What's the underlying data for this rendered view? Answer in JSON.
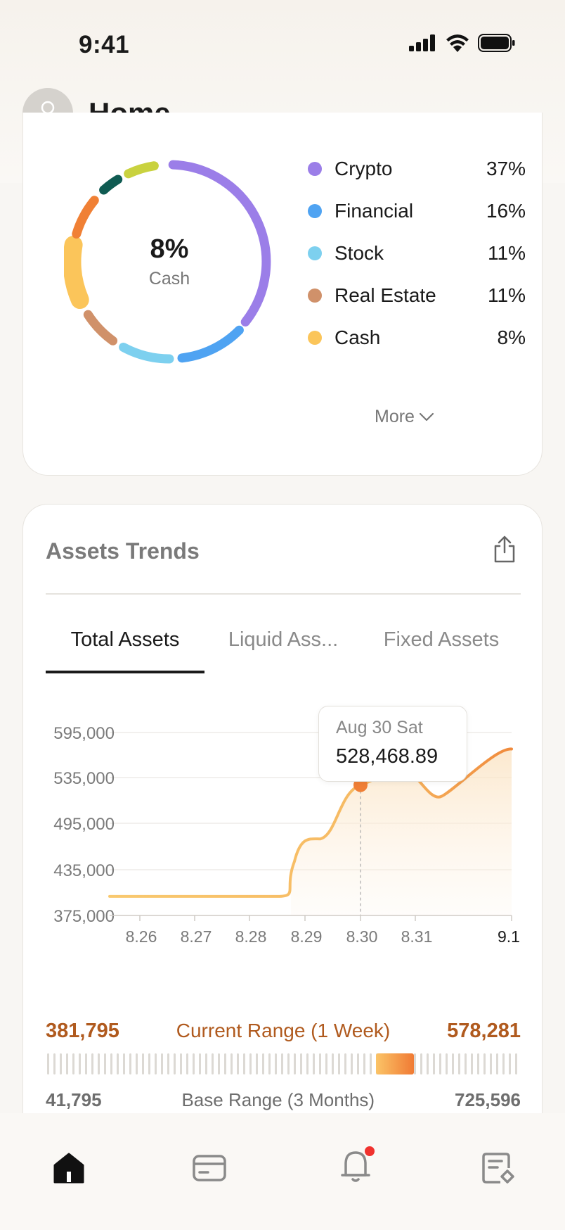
{
  "status_bar": {
    "time": "9:41"
  },
  "header": {
    "title": "Home"
  },
  "allocation": {
    "center_percent": "8%",
    "center_label": "Cash",
    "legend": [
      {
        "name": "Crypto",
        "percent": "37%",
        "color": "#9b7ee8"
      },
      {
        "name": "Financial",
        "percent": "16%",
        "color": "#4fa3f2"
      },
      {
        "name": "Stock",
        "percent": "11%",
        "color": "#7dd0ef"
      },
      {
        "name": "Real Estate",
        "percent": "11%",
        "color": "#d0916a"
      },
      {
        "name": "Cash",
        "percent": "8%",
        "color": "#fbc55a"
      }
    ],
    "more_label": "More"
  },
  "trends": {
    "title": "Assets Trends",
    "tabs": [
      {
        "label": "Total Assets",
        "active": true
      },
      {
        "label": "Liquid Ass...",
        "active": false
      },
      {
        "label": "Fixed Assets",
        "active": false
      }
    ],
    "tooltip": {
      "date": "Aug 30 Sat",
      "value": "528,468.89"
    },
    "current_range": {
      "min": "381,795",
      "label": "Current Range (1 Week)",
      "max": "578,281"
    },
    "base_range": {
      "min": "41,795",
      "label": "Base Range (3 Months)",
      "max": "725,596"
    }
  },
  "chart_data": {
    "type": "area",
    "x": [
      "8.26",
      "8.27",
      "8.28",
      "8.29",
      "8.30",
      "8.31",
      "9.1"
    ],
    "y_ticks": [
      "595,000",
      "535,000",
      "495,000",
      "435,000",
      "375,000"
    ],
    "values": [
      400000,
      400000,
      400000,
      473000,
      528468.89,
      520000,
      573000
    ],
    "highlight": {
      "x": "8.30",
      "value": 528468.89
    },
    "line_color": "#f9c46a",
    "line_color_end": "#f08a3c"
  },
  "colors": {
    "accent": "#b05a1e",
    "donut_extra": [
      "#f08035",
      "#0f5b52",
      "#c9d23f"
    ]
  }
}
